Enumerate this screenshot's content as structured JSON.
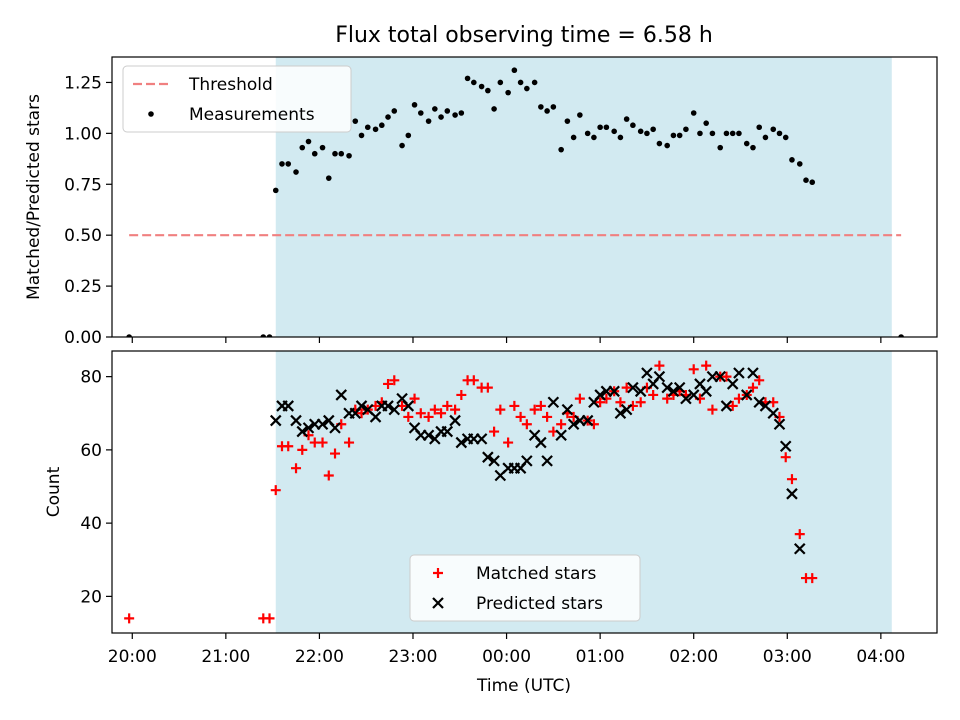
{
  "figure": {
    "title": "Flux total observing time = 6.58 h",
    "xlabel": "Time (UTC)"
  },
  "chart_data": [
    {
      "type": "scatter",
      "panel": "top",
      "ylabel": "Matched/Predicted stars",
      "xlabel": "Time (UTC)",
      "xlim": [
        "19:47",
        "04:36"
      ],
      "ylim": [
        0,
        1.375
      ],
      "x_ticks": [
        "20:00",
        "21:00",
        "22:00",
        "23:00",
        "00:00",
        "01:00",
        "02:00",
        "03:00",
        "04:00"
      ],
      "y_ticks": [
        "0.00",
        "0.25",
        "0.50",
        "0.75",
        "1.00",
        "1.25"
      ],
      "grid": false,
      "legend_position": "top-left",
      "shaded_span": {
        "start": "21:32",
        "end": "04:07",
        "color": "#add8e6"
      },
      "threshold": {
        "name": "Threshold",
        "value": 0.5,
        "from": "19:58",
        "to": "04:13",
        "color": "#f08080"
      },
      "series": [
        {
          "name": "Measurements",
          "color": "#000000",
          "points": [
            [
              "19:58",
              0.0
            ],
            [
              "21:24",
              0.0
            ],
            [
              "21:28",
              0.0
            ],
            [
              "21:32",
              0.72
            ],
            [
              "21:36",
              0.85
            ],
            [
              "21:40",
              0.85
            ],
            [
              "21:45",
              0.81
            ],
            [
              "21:49",
              0.93
            ],
            [
              "21:53",
              0.96
            ],
            [
              "21:57",
              0.9
            ],
            [
              "22:02",
              0.93
            ],
            [
              "22:06",
              0.78
            ],
            [
              "22:10",
              0.9
            ],
            [
              "22:14",
              0.9
            ],
            [
              "22:19",
              0.89
            ],
            [
              "22:23",
              1.06
            ],
            [
              "22:27",
              0.99
            ],
            [
              "22:31",
              1.03
            ],
            [
              "22:36",
              1.02
            ],
            [
              "22:40",
              1.04
            ],
            [
              "22:44",
              1.08
            ],
            [
              "22:48",
              1.11
            ],
            [
              "22:53",
              0.94
            ],
            [
              "22:57",
              0.99
            ],
            [
              "23:01",
              1.14
            ],
            [
              "23:05",
              1.1
            ],
            [
              "23:10",
              1.06
            ],
            [
              "23:14",
              1.12
            ],
            [
              "23:18",
              1.08
            ],
            [
              "23:22",
              1.11
            ],
            [
              "23:27",
              1.09
            ],
            [
              "23:31",
              1.1
            ],
            [
              "23:35",
              1.27
            ],
            [
              "23:39",
              1.25
            ],
            [
              "23:44",
              1.23
            ],
            [
              "23:48",
              1.21
            ],
            [
              "23:52",
              1.12
            ],
            [
              "23:56",
              1.25
            ],
            [
              "00:01",
              1.2
            ],
            [
              "00:05",
              1.31
            ],
            [
              "00:09",
              1.25
            ],
            [
              "00:13",
              1.22
            ],
            [
              "00:18",
              1.25
            ],
            [
              "00:22",
              1.13
            ],
            [
              "00:26",
              1.11
            ],
            [
              "00:30",
              1.13
            ],
            [
              "00:35",
              0.92
            ],
            [
              "00:39",
              1.06
            ],
            [
              "00:43",
              0.98
            ],
            [
              "00:47",
              1.09
            ],
            [
              "00:52",
              1.0
            ],
            [
              "00:56",
              0.98
            ],
            [
              "01:00",
              1.03
            ],
            [
              "01:04",
              1.03
            ],
            [
              "01:09",
              1.01
            ],
            [
              "01:13",
              0.98
            ],
            [
              "01:17",
              1.07
            ],
            [
              "01:21",
              1.04
            ],
            [
              "01:26",
              1.01
            ],
            [
              "01:30",
              1.0
            ],
            [
              "01:34",
              1.02
            ],
            [
              "01:38",
              0.95
            ],
            [
              "01:43",
              0.94
            ],
            [
              "01:47",
              0.99
            ],
            [
              "01:51",
              0.99
            ],
            [
              "01:55",
              1.02
            ],
            [
              "02:00",
              1.1
            ],
            [
              "02:04",
              1.0
            ],
            [
              "02:08",
              1.05
            ],
            [
              "02:12",
              1.0
            ],
            [
              "02:17",
              0.93
            ],
            [
              "02:21",
              1.0
            ],
            [
              "02:25",
              1.0
            ],
            [
              "02:29",
              1.0
            ],
            [
              "02:34",
              0.95
            ],
            [
              "02:38",
              0.93
            ],
            [
              "02:42",
              1.03
            ],
            [
              "02:46",
              0.98
            ],
            [
              "02:51",
              1.02
            ],
            [
              "02:55",
              1.0
            ],
            [
              "02:59",
              0.98
            ],
            [
              "03:03",
              0.87
            ],
            [
              "03:08",
              0.85
            ],
            [
              "03:12",
              0.77
            ],
            [
              "03:16",
              0.76
            ],
            [
              "04:13",
              0.0
            ]
          ]
        }
      ]
    },
    {
      "type": "scatter",
      "panel": "bottom",
      "ylabel": "Count",
      "xlabel": "Time (UTC)",
      "xlim": [
        "19:47",
        "04:36"
      ],
      "ylim": [
        10,
        87
      ],
      "x_ticks": [
        "20:00",
        "21:00",
        "22:00",
        "23:00",
        "00:00",
        "01:00",
        "02:00",
        "03:00",
        "04:00"
      ],
      "y_ticks": [
        "20",
        "40",
        "60",
        "80"
      ],
      "grid": false,
      "legend_position": "bottom-center",
      "shaded_span": {
        "start": "21:32",
        "end": "04:07",
        "color": "#add8e6"
      },
      "series": [
        {
          "name": "Matched stars",
          "marker": "plus",
          "color": "#ff0000",
          "points": [
            [
              "19:58",
              14
            ],
            [
              "21:24",
              14
            ],
            [
              "21:28",
              14
            ],
            [
              "21:32",
              49
            ],
            [
              "21:36",
              61
            ],
            [
              "21:40",
              61
            ],
            [
              "21:45",
              55
            ],
            [
              "21:49",
              60
            ],
            [
              "21:53",
              64
            ],
            [
              "21:57",
              62
            ],
            [
              "22:02",
              62
            ],
            [
              "22:06",
              53
            ],
            [
              "22:10",
              59
            ],
            [
              "22:14",
              67
            ],
            [
              "22:19",
              62
            ],
            [
              "22:23",
              71
            ],
            [
              "22:27",
              70
            ],
            [
              "22:31",
              71
            ],
            [
              "22:36",
              72
            ],
            [
              "22:40",
              73
            ],
            [
              "22:44",
              78
            ],
            [
              "22:48",
              79
            ],
            [
              "22:53",
              72
            ],
            [
              "22:57",
              69
            ],
            [
              "23:01",
              74
            ],
            [
              "23:05",
              70
            ],
            [
              "23:10",
              69
            ],
            [
              "23:14",
              71
            ],
            [
              "23:18",
              70
            ],
            [
              "23:22",
              72
            ],
            [
              "23:27",
              71
            ],
            [
              "23:31",
              75
            ],
            [
              "23:35",
              79
            ],
            [
              "23:39",
              79
            ],
            [
              "23:44",
              77
            ],
            [
              "23:48",
              77
            ],
            [
              "23:52",
              65
            ],
            [
              "23:56",
              71
            ],
            [
              "00:01",
              62
            ],
            [
              "00:05",
              72
            ],
            [
              "00:09",
              69
            ],
            [
              "00:13",
              67
            ],
            [
              "00:18",
              71
            ],
            [
              "00:22",
              72
            ],
            [
              "00:26",
              69
            ],
            [
              "00:30",
              65
            ],
            [
              "00:35",
              67
            ],
            [
              "00:39",
              70
            ],
            [
              "00:43",
              69
            ],
            [
              "00:47",
              74
            ],
            [
              "00:52",
              68
            ],
            [
              "00:56",
              67
            ],
            [
              "01:00",
              73
            ],
            [
              "01:04",
              74
            ],
            [
              "01:09",
              76
            ],
            [
              "01:13",
              73
            ],
            [
              "01:17",
              77
            ],
            [
              "01:21",
              72
            ],
            [
              "01:26",
              73
            ],
            [
              "01:30",
              77
            ],
            [
              "01:34",
              75
            ],
            [
              "01:38",
              83
            ],
            [
              "01:43",
              74
            ],
            [
              "01:47",
              75
            ],
            [
              "01:51",
              76
            ],
            [
              "01:55",
              75
            ],
            [
              "02:00",
              82
            ],
            [
              "02:04",
              74
            ],
            [
              "02:08",
              83
            ],
            [
              "02:12",
              71
            ],
            [
              "02:17",
              80
            ],
            [
              "02:21",
              80
            ],
            [
              "02:25",
              72
            ],
            [
              "02:29",
              74
            ],
            [
              "02:34",
              75
            ],
            [
              "02:38",
              77
            ],
            [
              "02:42",
              79
            ],
            [
              "02:46",
              73
            ],
            [
              "02:51",
              73
            ],
            [
              "02:55",
              69
            ],
            [
              "02:59",
              58
            ],
            [
              "03:03",
              52
            ],
            [
              "03:08",
              37
            ],
            [
              "03:12",
              25
            ],
            [
              "03:16",
              25
            ]
          ]
        },
        {
          "name": "Predicted stars",
          "marker": "x",
          "color": "#000000",
          "points": [
            [
              "21:32",
              68
            ],
            [
              "21:36",
              72
            ],
            [
              "21:40",
              72
            ],
            [
              "21:45",
              68
            ],
            [
              "21:49",
              65
            ],
            [
              "21:53",
              66
            ],
            [
              "21:57",
              67
            ],
            [
              "22:02",
              67
            ],
            [
              "22:06",
              68
            ],
            [
              "22:10",
              66
            ],
            [
              "22:14",
              75
            ],
            [
              "22:19",
              70
            ],
            [
              "22:23",
              70
            ],
            [
              "22:27",
              72
            ],
            [
              "22:31",
              71
            ],
            [
              "22:36",
              69
            ],
            [
              "22:40",
              72
            ],
            [
              "22:44",
              72
            ],
            [
              "22:48",
              71
            ],
            [
              "22:53",
              74
            ],
            [
              "22:57",
              72
            ],
            [
              "23:01",
              66
            ],
            [
              "23:05",
              64
            ],
            [
              "23:10",
              64
            ],
            [
              "23:14",
              63
            ],
            [
              "23:18",
              65
            ],
            [
              "23:22",
              65
            ],
            [
              "23:27",
              68
            ],
            [
              "23:31",
              62
            ],
            [
              "23:35",
              63
            ],
            [
              "23:39",
              63
            ],
            [
              "23:44",
              63
            ],
            [
              "23:48",
              58
            ],
            [
              "23:52",
              57
            ],
            [
              "23:56",
              53
            ],
            [
              "00:01",
              55
            ],
            [
              "00:05",
              55
            ],
            [
              "00:09",
              55
            ],
            [
              "00:13",
              57
            ],
            [
              "00:18",
              64
            ],
            [
              "00:22",
              62
            ],
            [
              "00:26",
              57
            ],
            [
              "00:30",
              73
            ],
            [
              "00:35",
              64
            ],
            [
              "00:39",
              71
            ],
            [
              "00:43",
              67
            ],
            [
              "00:47",
              68
            ],
            [
              "00:52",
              68
            ],
            [
              "00:56",
              73
            ],
            [
              "01:00",
              75
            ],
            [
              "01:04",
              76
            ],
            [
              "01:09",
              76
            ],
            [
              "01:13",
              70
            ],
            [
              "01:17",
              71
            ],
            [
              "01:21",
              77
            ],
            [
              "01:26",
              76
            ],
            [
              "01:30",
              81
            ],
            [
              "01:34",
              78
            ],
            [
              "01:38",
              80
            ],
            [
              "01:43",
              77
            ],
            [
              "01:47",
              76
            ],
            [
              "01:51",
              77
            ],
            [
              "01:55",
              74
            ],
            [
              "02:00",
              75
            ],
            [
              "02:04",
              78
            ],
            [
              "02:08",
              76
            ],
            [
              "02:12",
              80
            ],
            [
              "02:17",
              80
            ],
            [
              "02:21",
              72
            ],
            [
              "02:25",
              78
            ],
            [
              "02:29",
              81
            ],
            [
              "02:34",
              75
            ],
            [
              "02:38",
              81
            ],
            [
              "02:42",
              73
            ],
            [
              "02:46",
              72
            ],
            [
              "02:51",
              70
            ],
            [
              "02:55",
              67
            ],
            [
              "02:59",
              61
            ],
            [
              "03:03",
              48
            ],
            [
              "03:08",
              33
            ]
          ]
        }
      ]
    }
  ]
}
